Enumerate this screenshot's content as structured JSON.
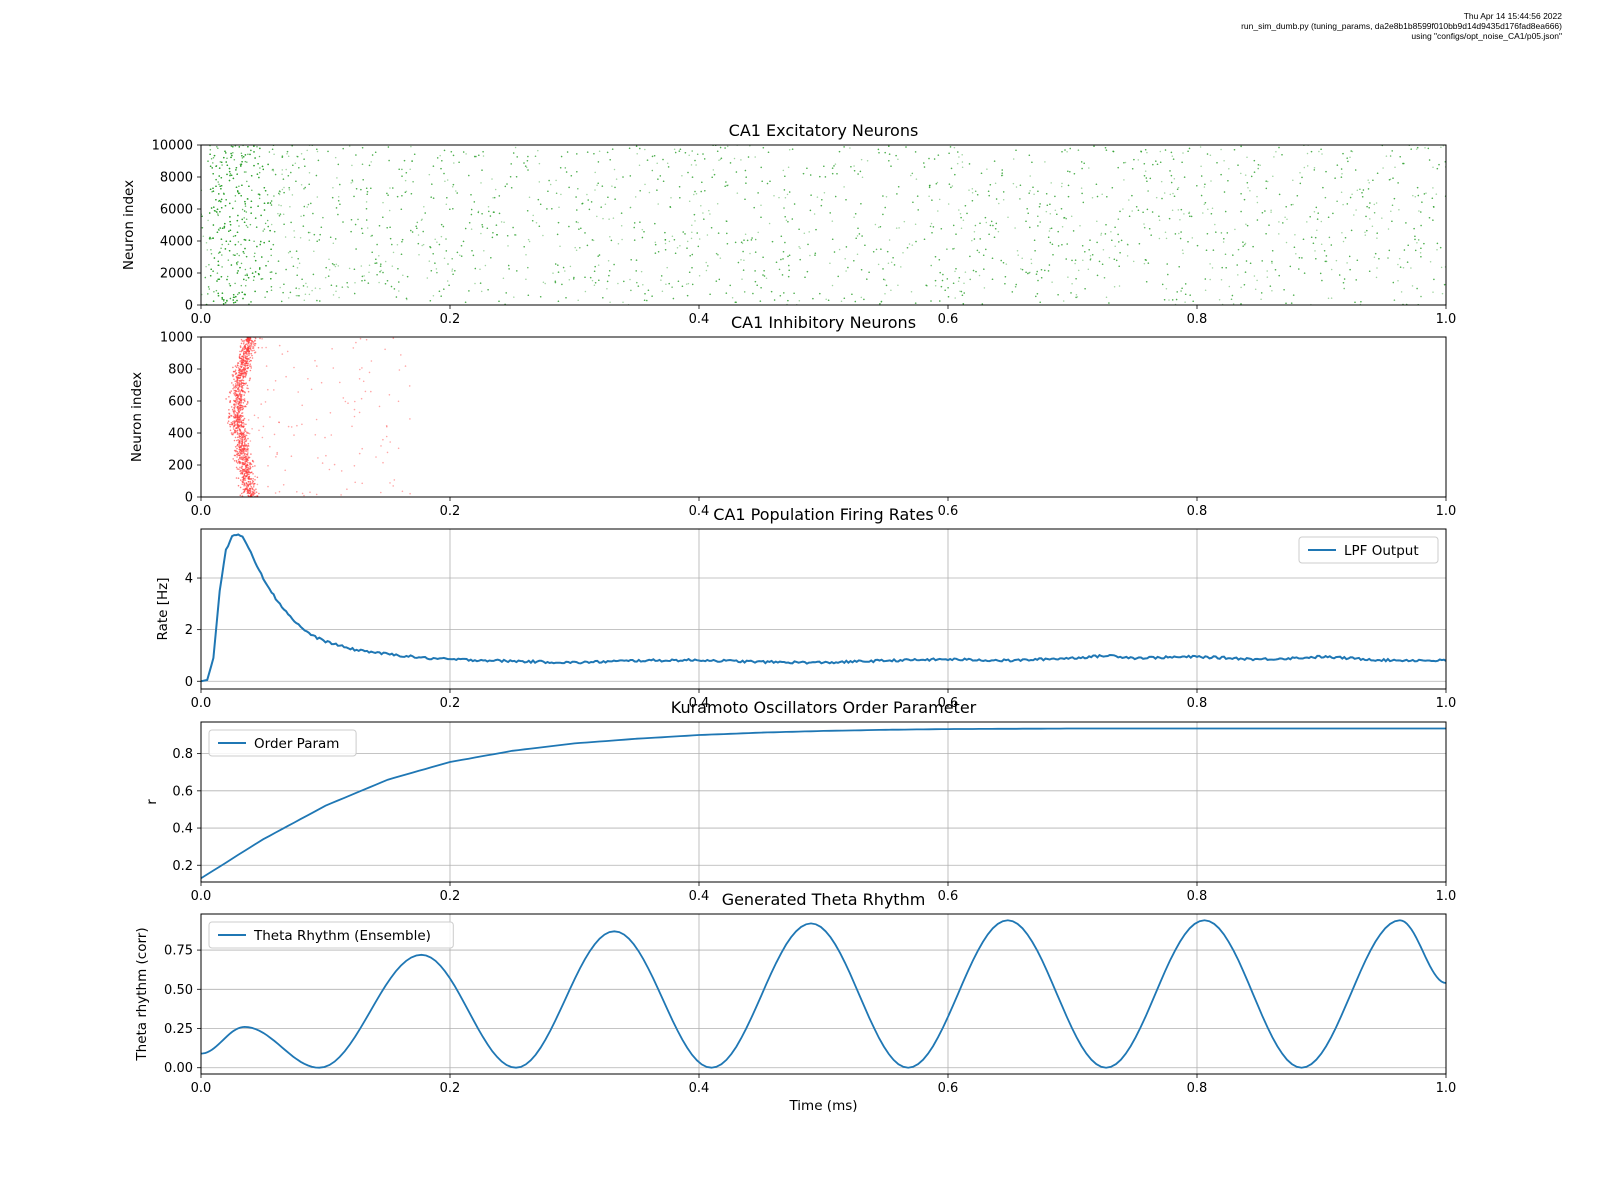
{
  "header": {
    "line1": "Thu Apr 14 15:44:56 2022",
    "line2": "run_sim_dumb.py (tuning_params, da2e8b1b8599f010bb9d14d9435d176fad8ea666)",
    "line3": "using \"configs/opt_noise_CA1/p05.json\""
  },
  "colors": {
    "excitatory": "#2ca02c",
    "inhibitory": "#ff3b3b",
    "line": "#1f77b4"
  },
  "chart_data": [
    {
      "type": "scatter",
      "title": "CA1 Excitatory Neurons",
      "xlabel": "",
      "ylabel": "Neuron index",
      "xlim": [
        0,
        1.0
      ],
      "ylim": [
        0,
        10000
      ],
      "xticks": [
        "0.0",
        "0.2",
        "0.4",
        "0.6",
        "0.8",
        "1.0"
      ],
      "yticks": [
        "0",
        "2000",
        "4000",
        "6000",
        "8000",
        "10000"
      ],
      "grid": false,
      "color": "#2ca02c",
      "density_profile": [
        {
          "t": 0.0,
          "density": 0.3
        },
        {
          "t": 0.01,
          "density": 3.0
        },
        {
          "t": 0.03,
          "density": 3.5
        },
        {
          "t": 0.06,
          "density": 1.8
        },
        {
          "t": 0.1,
          "density": 1.1
        },
        {
          "t": 0.2,
          "density": 0.85
        },
        {
          "t": 1.0,
          "density": 0.85
        }
      ]
    },
    {
      "type": "scatter",
      "title": "CA1 Inhibitory Neurons",
      "xlabel": "",
      "ylabel": "Neuron index",
      "xlim": [
        0,
        1.0
      ],
      "ylim": [
        0,
        1000
      ],
      "xticks": [
        "0.0",
        "0.2",
        "0.4",
        "0.6",
        "0.8",
        "1.0"
      ],
      "yticks": [
        "0",
        "200",
        "400",
        "600",
        "800",
        "1000"
      ],
      "grid": false,
      "color": "#ff3b3b",
      "wavefront": [
        {
          "y": 0,
          "t": 0.04
        },
        {
          "y": 250,
          "t": 0.034
        },
        {
          "y": 500,
          "t": 0.029
        },
        {
          "y": 750,
          "t": 0.032
        },
        {
          "y": 1000,
          "t": 0.04
        }
      ],
      "tail_extent_t": 0.17
    },
    {
      "type": "line",
      "title": "CA1 Population Firing Rates",
      "xlabel": "",
      "ylabel": "Rate [Hz]",
      "xlim": [
        0,
        1.0
      ],
      "ylim": [
        -0.3,
        5.9
      ],
      "xticks": [
        "0.0",
        "0.2",
        "0.4",
        "0.6",
        "0.8",
        "1.0"
      ],
      "yticks": [
        0,
        2,
        4
      ],
      "grid": true,
      "legend": "top-right",
      "series": [
        {
          "name": "LPF Output",
          "x": [
            0,
            0.005,
            0.01,
            0.015,
            0.02,
            0.025,
            0.03,
            0.035,
            0.04,
            0.05,
            0.06,
            0.07,
            0.08,
            0.09,
            0.1,
            0.12,
            0.15,
            0.18,
            0.2,
            0.25,
            0.3,
            0.35,
            0.4,
            0.45,
            0.5,
            0.55,
            0.6,
            0.65,
            0.7,
            0.73,
            0.75,
            0.8,
            0.85,
            0.88,
            0.9,
            0.95,
            1.0
          ],
          "y": [
            0,
            0.05,
            0.9,
            3.5,
            5.1,
            5.6,
            5.7,
            5.5,
            5.0,
            4.0,
            3.2,
            2.6,
            2.1,
            1.75,
            1.55,
            1.25,
            1.05,
            0.9,
            0.85,
            0.78,
            0.72,
            0.8,
            0.82,
            0.75,
            0.72,
            0.8,
            0.85,
            0.8,
            0.9,
            1.0,
            0.9,
            0.95,
            0.85,
            0.9,
            0.95,
            0.82,
            0.8
          ]
        }
      ]
    },
    {
      "type": "line",
      "title": "Kuramoto Oscillators Order Parameter",
      "xlabel": "",
      "ylabel": "r",
      "xlim": [
        0,
        1.0
      ],
      "ylim": [
        0.11,
        0.97
      ],
      "xticks": [
        "0.0",
        "0.2",
        "0.4",
        "0.6",
        "0.8",
        "1.0"
      ],
      "yticks": [
        "0.2",
        "0.4",
        "0.6",
        "0.8"
      ],
      "grid": true,
      "legend": "top-left",
      "series": [
        {
          "name": "Order Param",
          "x": [
            0,
            0.05,
            0.1,
            0.15,
            0.2,
            0.25,
            0.3,
            0.35,
            0.4,
            0.45,
            0.5,
            0.55,
            0.6,
            0.7,
            0.8,
            0.9,
            1.0
          ],
          "y": [
            0.13,
            0.34,
            0.52,
            0.66,
            0.755,
            0.815,
            0.855,
            0.88,
            0.9,
            0.913,
            0.922,
            0.928,
            0.932,
            0.935,
            0.935,
            0.935,
            0.935
          ]
        }
      ]
    },
    {
      "type": "line",
      "title": "Generated Theta Rhythm",
      "xlabel": "Time (ms)",
      "ylabel": "Theta rhythm (corr)",
      "xlim": [
        0,
        1.0
      ],
      "ylim": [
        -0.04,
        0.98
      ],
      "xticks": [
        "0.0",
        "0.2",
        "0.4",
        "0.6",
        "0.8",
        "1.0"
      ],
      "yticks": [
        "0.00",
        "0.25",
        "0.50",
        "0.75"
      ],
      "grid": true,
      "legend": "top-left",
      "series": [
        {
          "name": "Theta Rhythm (Ensemble)",
          "x": [
            0,
            0.035,
            0.095,
            0.177,
            0.253,
            0.332,
            0.41,
            0.49,
            0.568,
            0.648,
            0.727,
            0.806,
            0.884,
            0.963,
            1.0
          ],
          "y": [
            0.09,
            0.26,
            0.0,
            0.72,
            0.0,
            0.87,
            0.0,
            0.92,
            0.0,
            0.94,
            0.0,
            0.94,
            0.0,
            0.94,
            0.54
          ]
        }
      ]
    }
  ]
}
